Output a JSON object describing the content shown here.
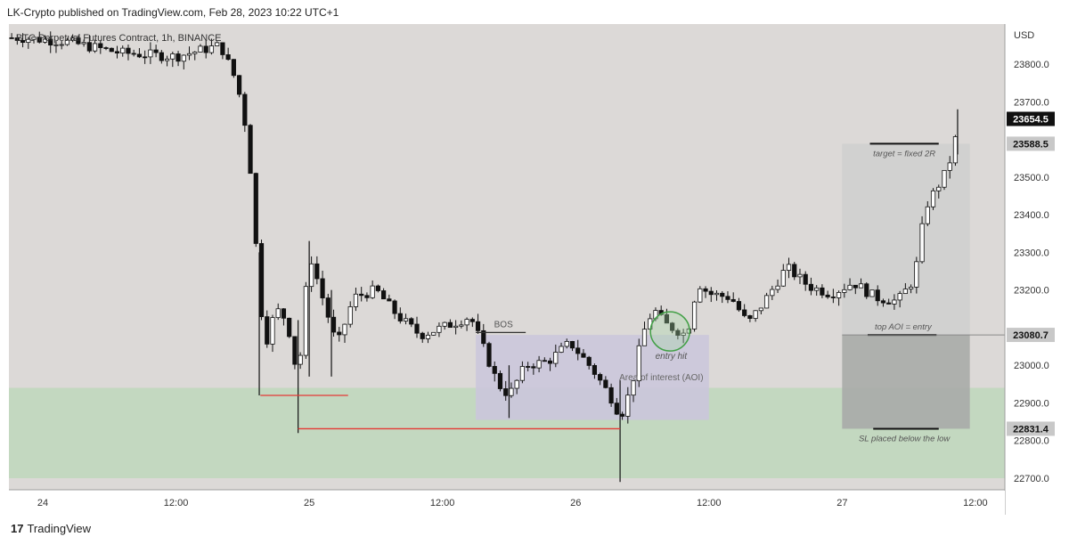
{
  "header": "LK-Crypto published on TradingView.com, Feb 28, 2023 10:22 UTC+1",
  "footer": {
    "logo_glyph": "17",
    "brand": "TradingView"
  },
  "chart_data": {
    "type": "candlestick",
    "title": "BTC Perpetual Futures Contract, 1h, BINANCE",
    "currency": "USD",
    "ylim": [
      22680,
      23900
    ],
    "y_ticks": [
      {
        "label": "23800.0",
        "value": 23800
      },
      {
        "label": "23700.0",
        "value": 23700
      },
      {
        "label": "23500.0",
        "value": 23500
      },
      {
        "label": "23400.0",
        "value": 23400
      },
      {
        "label": "23300.0",
        "value": 23300
      },
      {
        "label": "23200.0",
        "value": 23200
      },
      {
        "label": "23000.0",
        "value": 23000
      },
      {
        "label": "22900.0",
        "value": 22900
      },
      {
        "label": "22800.0",
        "value": 22800
      },
      {
        "label": "22700.0",
        "value": 22700
      }
    ],
    "x_ticks": [
      {
        "label": "24",
        "hours": 0
      },
      {
        "label": "12:00",
        "hours": 12
      },
      {
        "label": "25",
        "hours": 24
      },
      {
        "label": "12:00",
        "hours": 36
      },
      {
        "label": "26",
        "hours": 48
      },
      {
        "label": "12:00",
        "hours": 60
      },
      {
        "label": "27",
        "hours": 72
      },
      {
        "label": "12:00",
        "hours": 84
      }
    ],
    "price_labels": [
      {
        "label": "23654.5",
        "value": 23654.5,
        "style": "current"
      },
      {
        "label": "23588.5",
        "value": 23588.5,
        "style": "gray"
      },
      {
        "label": "23080.7",
        "value": 23080.7,
        "style": "gray"
      },
      {
        "label": "22831.4",
        "value": 22831.4,
        "style": "gray"
      }
    ],
    "anchors": [
      {
        "hours": -2,
        "price": 23870
      },
      {
        "hours": 2,
        "price": 23860
      },
      {
        "hours": 7,
        "price": 23830
      },
      {
        "hours": 12,
        "price": 23820
      },
      {
        "hours": 16,
        "price": 23850
      },
      {
        "hours": 17.5,
        "price": 23750
      },
      {
        "hours": 18.5,
        "price": 23600
      },
      {
        "hours": 19.5,
        "price": 23200
      },
      {
        "hours": 20,
        "price": 23050
      },
      {
        "hours": 21,
        "price": 23150
      },
      {
        "hours": 22,
        "price": 23120
      },
      {
        "hours": 23,
        "price": 22960
      },
      {
        "hours": 24,
        "price": 23300
      },
      {
        "hours": 25.5,
        "price": 23150
      },
      {
        "hours": 26.5,
        "price": 23050
      },
      {
        "hours": 28,
        "price": 23180
      },
      {
        "hours": 30,
        "price": 23200
      },
      {
        "hours": 32,
        "price": 23130
      },
      {
        "hours": 34,
        "price": 23080
      },
      {
        "hours": 36,
        "price": 23100
      },
      {
        "hours": 38.5,
        "price": 23130
      },
      {
        "hours": 39.5,
        "price": 23060
      },
      {
        "hours": 41,
        "price": 22950
      },
      {
        "hours": 42,
        "price": 22920
      },
      {
        "hours": 43.5,
        "price": 23000
      },
      {
        "hours": 45.5,
        "price": 23010
      },
      {
        "hours": 47.5,
        "price": 23060
      },
      {
        "hours": 49.5,
        "price": 22990
      },
      {
        "hours": 51.5,
        "price": 22900
      },
      {
        "hours": 52,
        "price": 22860
      },
      {
        "hours": 53,
        "price": 22940
      },
      {
        "hours": 54,
        "price": 23080
      },
      {
        "hours": 55,
        "price": 23150
      },
      {
        "hours": 56,
        "price": 23110
      },
      {
        "hours": 58,
        "price": 23080
      },
      {
        "hours": 59,
        "price": 23220
      },
      {
        "hours": 60,
        "price": 23190
      },
      {
        "hours": 62,
        "price": 23180
      },
      {
        "hours": 63.5,
        "price": 23110
      },
      {
        "hours": 65,
        "price": 23170
      },
      {
        "hours": 67,
        "price": 23260
      },
      {
        "hours": 69,
        "price": 23210
      },
      {
        "hours": 71,
        "price": 23190
      },
      {
        "hours": 73,
        "price": 23220
      },
      {
        "hours": 75,
        "price": 23180
      },
      {
        "hours": 77,
        "price": 23170
      },
      {
        "hours": 78.5,
        "price": 23230
      },
      {
        "hours": 79.5,
        "price": 23420
      },
      {
        "hours": 80.5,
        "price": 23470
      },
      {
        "hours": 81.5,
        "price": 23520
      },
      {
        "hours": 82.2,
        "price": 23600
      }
    ],
    "wicks": [
      {
        "hours": 19.5,
        "low": 22920,
        "high": 23300
      },
      {
        "hours": 23,
        "low": 22820,
        "high": 23120
      },
      {
        "hours": 24,
        "low": 22970,
        "high": 23330
      },
      {
        "hours": 26,
        "low": 22970,
        "high": 23200
      },
      {
        "hours": 42,
        "low": 22860,
        "high": 23000
      },
      {
        "hours": 52,
        "low": 22690,
        "high": 22960
      },
      {
        "hours": 82.4,
        "low": 23560,
        "high": 23680
      }
    ],
    "zones": [
      {
        "name": "demand",
        "price_top": 22940,
        "price_bottom": 22700,
        "color": "#c3d8c0"
      },
      {
        "name": "aoi",
        "hours_start": 39,
        "hours_end": 60,
        "price_top": 23080.7,
        "price_bottom": 22855,
        "color": "#cbc7dc"
      }
    ],
    "hlines": [
      {
        "hours_start": 19.6,
        "hours_end": 27.5,
        "price": 22920,
        "color": "#e53935"
      },
      {
        "hours_start": 23,
        "hours_end": 52,
        "price": 22831.4,
        "color": "#e53935"
      },
      {
        "hours_start": 39,
        "hours_end": 43.5,
        "price": 23087,
        "color": "#333333"
      }
    ],
    "annotations": {
      "bos": "BOS",
      "entry_hit": "entry hit",
      "aoi_label": "Area of interest (AOI)",
      "target": "target = fixed 2R",
      "top_aoi": "top AOI = entry",
      "sl": "SL placed below the low"
    },
    "position_tool": {
      "hours_start": 72,
      "hours_end": 83.5,
      "target": 23588.5,
      "entry": 23080.7,
      "stop": 22831.4
    },
    "circle": {
      "hours": 56.5,
      "price": 23090
    }
  }
}
